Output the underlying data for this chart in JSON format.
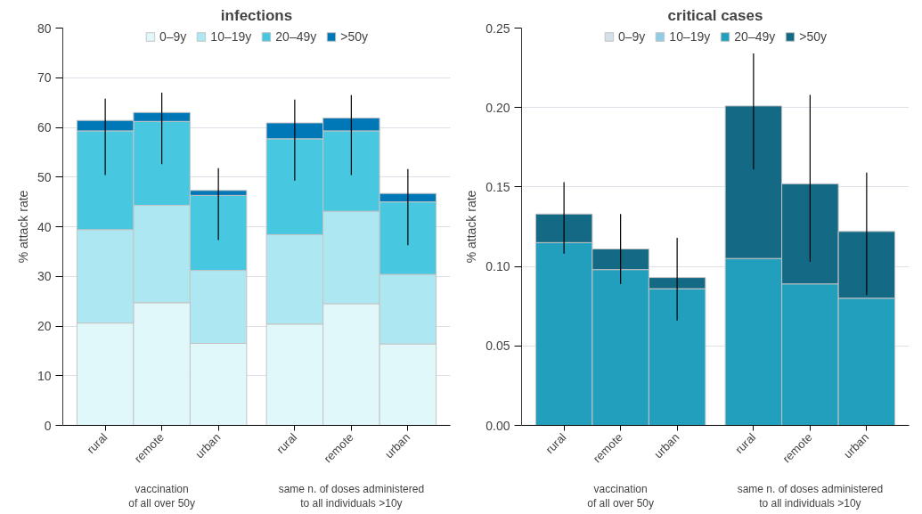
{
  "chart_data": [
    {
      "type": "bar",
      "title": "infections",
      "ylabel": "% attack rate",
      "stacked": true,
      "legend": "top",
      "grid": "y",
      "categories": [
        "rural",
        "remote",
        "urban",
        "rural",
        "remote",
        "urban"
      ],
      "ylim": [
        0,
        80
      ],
      "yticks": [
        0,
        10,
        20,
        30,
        40,
        50,
        60,
        70,
        80
      ],
      "series": [
        {
          "name": "0–9y",
          "color": "#e0f8f9",
          "values": [
            20.6,
            24.7,
            16.5,
            20.4,
            24.5,
            16.4
          ]
        },
        {
          "name": "10–19y",
          "color": "#ade8f2",
          "values": [
            18.8,
            19.6,
            14.7,
            18.0,
            18.6,
            14.0
          ]
        },
        {
          "name": "20–49y",
          "color": "#48c8e0",
          "values": [
            19.9,
            16.9,
            15.1,
            19.3,
            16.2,
            14.6
          ]
        },
        {
          "name": ">50y",
          "color": "#0077b6",
          "values": [
            2.1,
            1.8,
            1.0,
            3.2,
            2.6,
            1.7
          ],
          "errors": [
            [
              50.4,
              65.8
            ],
            [
              52.6,
              67.0
            ],
            [
              37.3,
              51.8
            ],
            [
              49.3,
              65.6
            ],
            [
              50.4,
              66.5
            ],
            [
              36.3,
              51.6
            ]
          ]
        }
      ],
      "annotations": [
        "vaccination\nof all over 50y",
        "same n. of doses administered\nto all individuals >10y"
      ]
    },
    {
      "type": "bar",
      "title": "critical cases",
      "ylabel": "% attack rate",
      "stacked": true,
      "legend": "top",
      "grid": "y",
      "categories": [
        "rural",
        "remote",
        "urban",
        "rural",
        "remote",
        "urban"
      ],
      "ylim": [
        0,
        0.25
      ],
      "yticks": [
        {
          "value": 0,
          "label": "0.00"
        },
        0.05,
        {
          "value": 0.1,
          "label": "0.10"
        },
        0.15,
        {
          "value": 0.2,
          "label": "0.20"
        },
        0.25
      ],
      "series": [
        {
          "name": "0–9y",
          "color": "#d3e0e8",
          "values": [
            0,
            0,
            0,
            0,
            0,
            0
          ]
        },
        {
          "name": "10–19y",
          "color": "#90cce6",
          "values": [
            0,
            0,
            0,
            0,
            0,
            0
          ]
        },
        {
          "name": "20–49y",
          "color": "#219fbc",
          "values": [
            0.115,
            0.098,
            0.086,
            0.105,
            0.089,
            0.08
          ]
        },
        {
          "name": ">50y",
          "color": "#146984",
          "values": [
            0.018,
            0.013,
            0.007,
            0.096,
            0.063,
            0.042
          ],
          "errors": [
            [
              0.108,
              0.153
            ],
            [
              0.089,
              0.133
            ],
            [
              0.066,
              0.118
            ],
            [
              0.161,
              0.234
            ],
            [
              0.103,
              0.208
            ],
            [
              0.082,
              0.159
            ]
          ]
        }
      ],
      "annotations": [
        "vaccination\nof all over 50y",
        "same n. of doses administered\nto all individuals >10y"
      ]
    }
  ]
}
